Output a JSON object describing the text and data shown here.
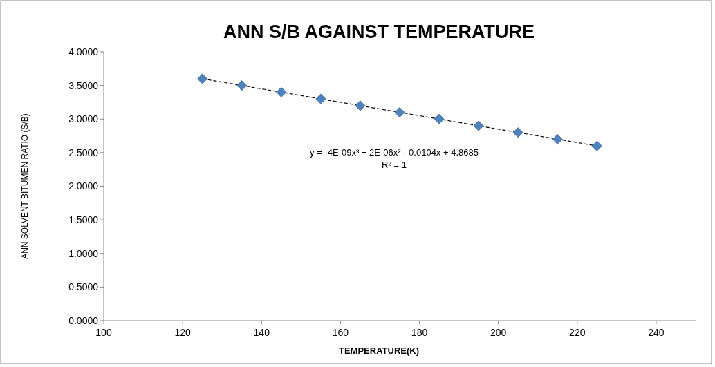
{
  "chart_data": {
    "type": "scatter",
    "title": "ANN S/B AGAINST TEMPERATURE",
    "xlabel": "TEMPERATURE(K)",
    "ylabel": "ANN SOLVENT BITUMEN RATIO (S/B)",
    "x": [
      125,
      135,
      145,
      155,
      165,
      175,
      185,
      195,
      205,
      215,
      225
    ],
    "series": [
      {
        "type": "scatter",
        "color": "#4f81bd",
        "marker": "diamond",
        "values": [
          3.6,
          3.5,
          3.4,
          3.3,
          3.2,
          3.1,
          3.0,
          2.9,
          2.8,
          2.7,
          2.6
        ]
      },
      {
        "type": "line",
        "color": "#000000",
        "line_style": "dashed",
        "marker": "none",
        "x": [
          125,
          175,
          225
        ],
        "values": [
          3.6,
          3.1,
          2.6
        ]
      }
    ],
    "xlim": [
      100,
      250
    ],
    "xticks": [
      100,
      120,
      140,
      160,
      180,
      200,
      220,
      240
    ],
    "ylim": [
      0,
      4
    ],
    "yticks": [
      {
        "value": 0,
        "label": "0.0000"
      },
      {
        "value": 0.5,
        "label": "0.5000"
      },
      {
        "value": 1,
        "label": "1.0000"
      },
      {
        "value": 1.5,
        "label": "1.5000"
      },
      {
        "value": 2,
        "label": "2.0000"
      },
      {
        "value": 2.5,
        "label": "2.5000"
      },
      {
        "value": 3,
        "label": "3.0000"
      },
      {
        "value": 3.5,
        "label": "3.5000"
      },
      {
        "value": 4,
        "label": "4.0000"
      }
    ],
    "grid": false,
    "annotations": [
      "y = -4E-09x³ + 2E-06x² - 0.0104x + 4.8685",
      "R² = 1"
    ]
  }
}
